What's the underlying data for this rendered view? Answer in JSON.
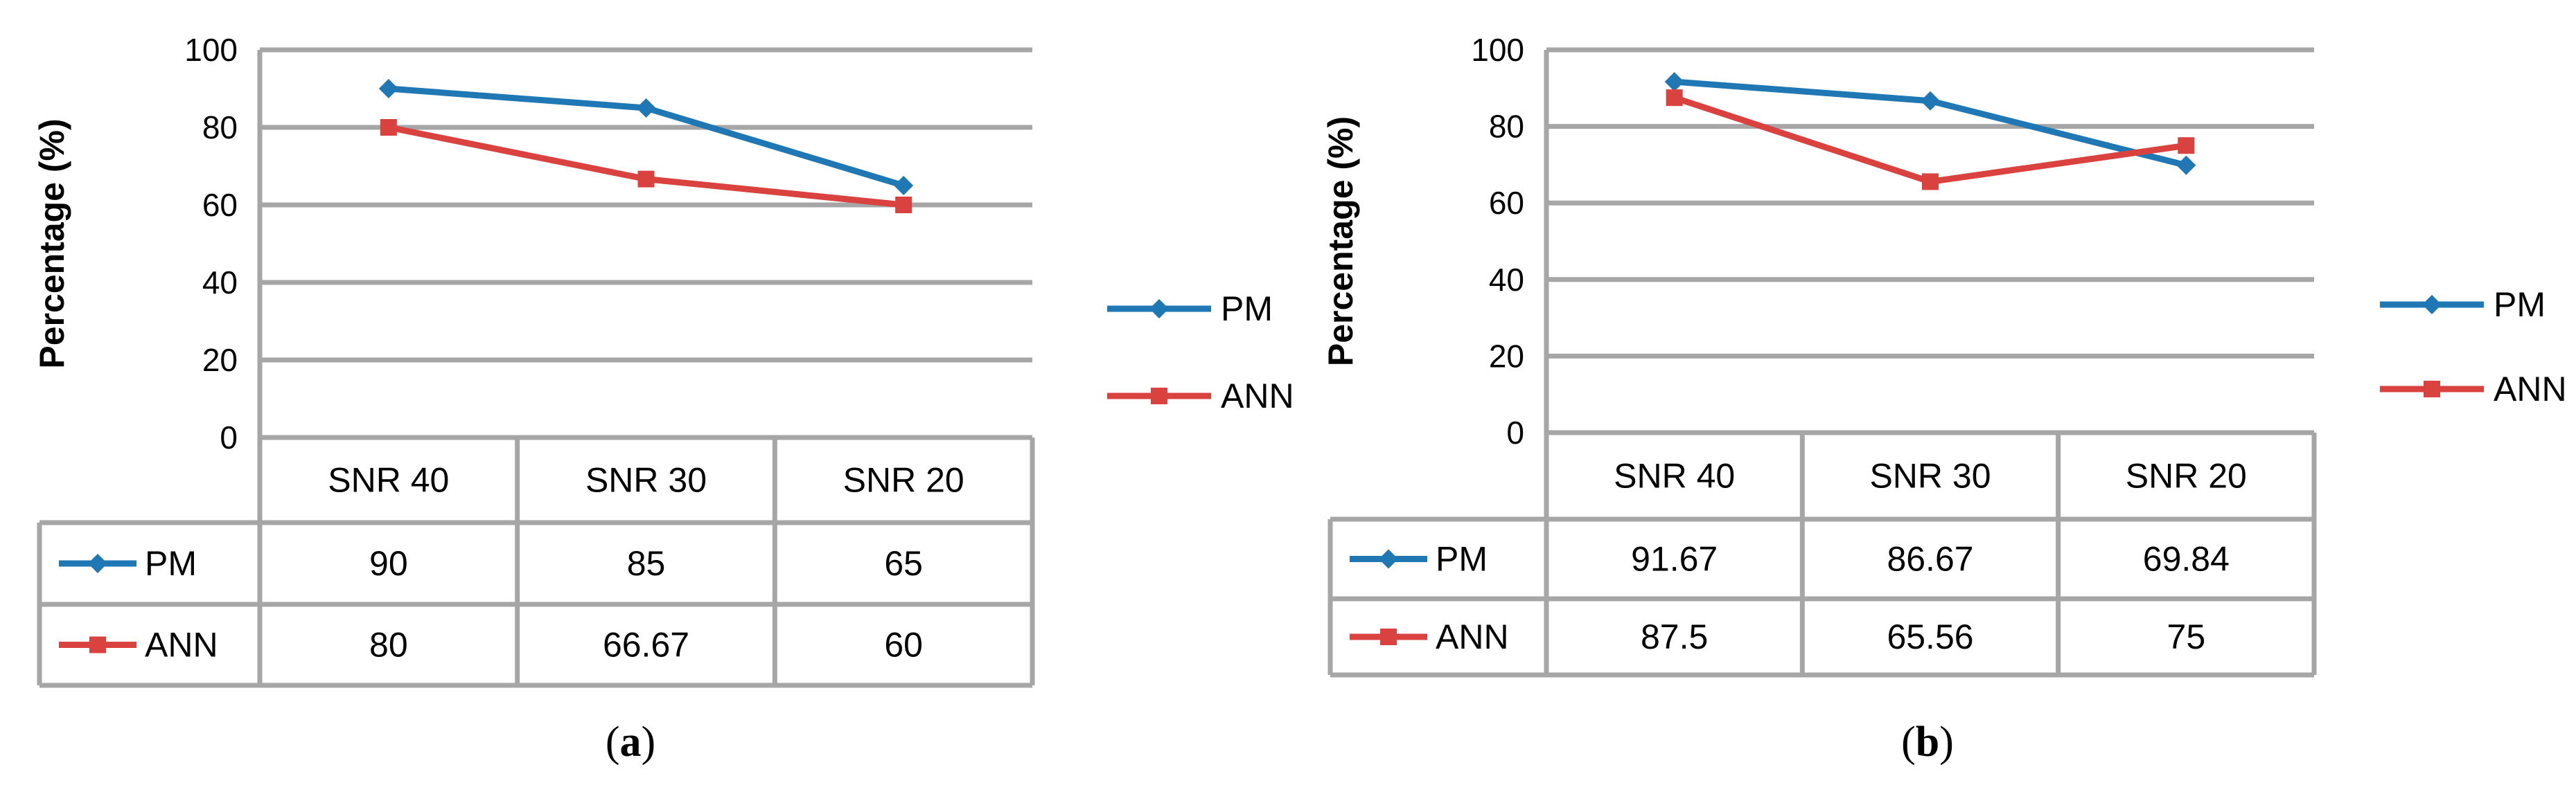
{
  "figure": {
    "captions": [
      "(a)",
      "(b)"
    ],
    "caption_letters": [
      "a",
      "b"
    ]
  },
  "colors": {
    "PM": "#1f77b4",
    "ANN": "#d9423f",
    "grid": "#a6a6a6"
  },
  "chart_data": [
    {
      "type": "line",
      "ylabel": "Percentage (%)",
      "ylim": [
        0,
        100
      ],
      "yticks": [
        "0",
        "20",
        "40",
        "60",
        "80",
        "100"
      ],
      "grid": true,
      "legend_position": "right",
      "categories": [
        "SNR  40",
        "SNR 30",
        "SNR 20"
      ],
      "series": [
        {
          "name": "PM",
          "marker": "diamond",
          "values": [
            90,
            85,
            65
          ],
          "labels": [
            "90",
            "85",
            "65"
          ]
        },
        {
          "name": "ANN",
          "marker": "square",
          "values": [
            80,
            66.67,
            60
          ],
          "labels": [
            "80",
            "66.67",
            "60"
          ]
        }
      ]
    },
    {
      "type": "line",
      "ylabel": "Percentage (%)",
      "ylim": [
        0,
        100
      ],
      "yticks": [
        "0",
        "20",
        "40",
        "60",
        "80",
        "100"
      ],
      "grid": true,
      "legend_position": "right",
      "categories": [
        "SNR  40",
        "SNR 30",
        "SNR 20"
      ],
      "series": [
        {
          "name": "PM",
          "marker": "diamond",
          "values": [
            91.67,
            86.67,
            69.84
          ],
          "labels": [
            "91.67",
            "86.67",
            "69.84"
          ]
        },
        {
          "name": "ANN",
          "marker": "square",
          "values": [
            87.5,
            65.56,
            75
          ],
          "labels": [
            "87.5",
            "65.56",
            "75"
          ]
        }
      ]
    }
  ]
}
